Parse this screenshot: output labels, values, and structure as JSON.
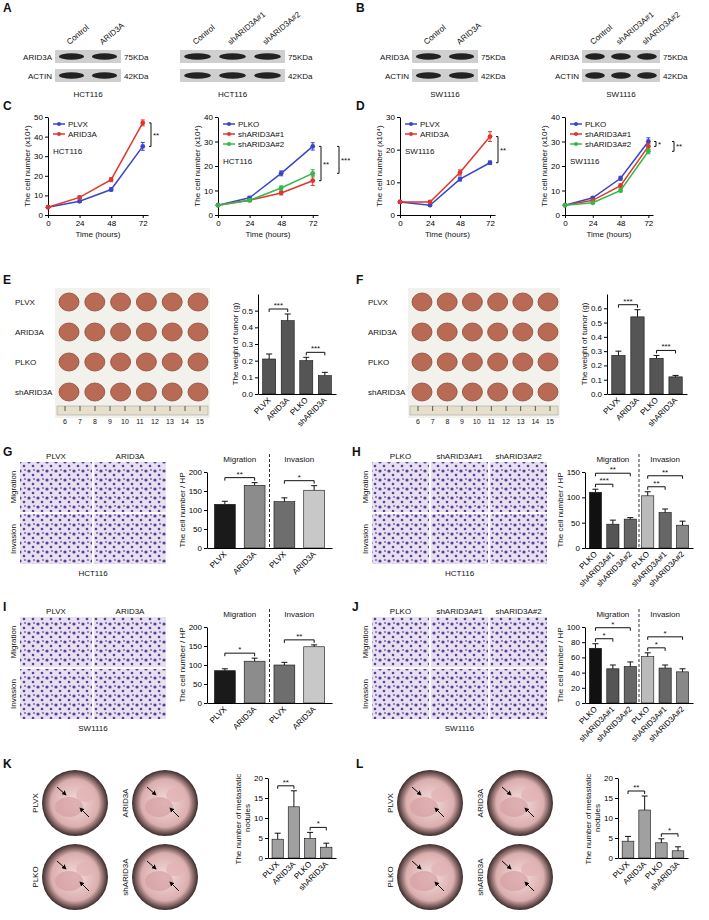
{
  "chart_data": [
    {
      "type": "line",
      "x_label": "Time (hours)",
      "y_label": "The cell number (x10⁴)",
      "cell_line": "HCT116",
      "x": [
        0,
        24,
        48,
        72
      ],
      "xlim": [
        0,
        76
      ],
      "xticks": [
        0,
        24,
        48,
        72
      ],
      "ylim": [
        0,
        50
      ],
      "yticks": [
        0,
        10,
        20,
        30,
        40,
        50
      ],
      "legend": "upper left",
      "marker": "circle",
      "series": [
        {
          "name": "PLVX",
          "color": "#3a46c8",
          "values": [
            4,
            7,
            13,
            35
          ],
          "errors": [
            0.4,
            0.6,
            0.8,
            2
          ]
        },
        {
          "name": "ARID3A",
          "color": "#e0362c",
          "values": [
            4,
            9,
            18,
            47
          ],
          "errors": [
            0.4,
            0.6,
            1,
            1.5
          ]
        }
      ],
      "annotations": [
        "**"
      ]
    },
    {
      "type": "line",
      "x_label": "Time (hours)",
      "y_label": "The cell number (x10⁴)",
      "cell_line": "HCT116",
      "x": [
        0,
        24,
        48,
        72
      ],
      "xlim": [
        0,
        76
      ],
      "xticks": [
        0,
        24,
        48,
        72
      ],
      "ylim": [
        0,
        40
      ],
      "yticks": [
        0,
        10,
        20,
        30,
        40
      ],
      "legend": "upper left",
      "marker": "circle",
      "series": [
        {
          "name": "PLKO",
          "color": "#3a46c8",
          "values": [
            4,
            7,
            17,
            28
          ],
          "errors": [
            0.4,
            0.6,
            1,
            1.5
          ]
        },
        {
          "name": "shARID3A#1",
          "color": "#e0362c",
          "values": [
            4,
            6,
            9,
            14
          ],
          "errors": [
            0.3,
            0.5,
            0.8,
            2
          ]
        },
        {
          "name": "shARID3A#2",
          "color": "#33b84a",
          "values": [
            4,
            6,
            11,
            17
          ],
          "errors": [
            0.3,
            0.5,
            0.9,
            1.5
          ]
        }
      ],
      "annotations": [
        "**",
        "***"
      ]
    },
    {
      "type": "line",
      "x_label": "Time (hours)",
      "y_label": "The cell number (x10⁴)",
      "cell_line": "SW1116",
      "x": [
        0,
        24,
        48,
        72
      ],
      "xlim": [
        0,
        76
      ],
      "xticks": [
        0,
        24,
        48,
        72
      ],
      "ylim": [
        0,
        30
      ],
      "yticks": [
        0,
        10,
        20,
        30
      ],
      "legend": "upper left",
      "marker": "circle",
      "series": [
        {
          "name": "PLVX",
          "color": "#3a46c8",
          "values": [
            4,
            3,
            11,
            16
          ],
          "errors": [
            0.3,
            0.3,
            0.6,
            0.5
          ]
        },
        {
          "name": "ARID3A",
          "color": "#e0362c",
          "values": [
            4,
            4,
            13,
            24
          ],
          "errors": [
            0.3,
            0.4,
            0.8,
            1.5
          ]
        }
      ],
      "annotations": [
        "**"
      ]
    },
    {
      "type": "line",
      "x_label": "Time (hours)",
      "y_label": "The cell number (x10⁴)",
      "cell_line": "SW1116",
      "x": [
        0,
        24,
        48,
        72
      ],
      "xlim": [
        0,
        76
      ],
      "xticks": [
        0,
        24,
        48,
        72
      ],
      "ylim": [
        0,
        40
      ],
      "yticks": [
        0,
        10,
        20,
        30,
        40
      ],
      "legend": "upper left",
      "marker": "circle",
      "series": [
        {
          "name": "PLKO",
          "color": "#3a46c8",
          "values": [
            4,
            7,
            15,
            30
          ],
          "errors": [
            0.3,
            0.5,
            0.8,
            1.5
          ]
        },
        {
          "name": "shARID3A#1",
          "color": "#e0362c",
          "values": [
            4,
            6,
            12,
            28
          ],
          "errors": [
            0.3,
            0.4,
            0.7,
            1.2
          ]
        },
        {
          "name": "shARID3A#2",
          "color": "#33b84a",
          "values": [
            4,
            5,
            10,
            26
          ],
          "errors": [
            0.3,
            0.4,
            0.6,
            1
          ]
        }
      ],
      "annotations": [
        "*",
        "**"
      ]
    },
    {
      "type": "bar",
      "y_label": "The weight of tumor (g)",
      "categories": [
        "PLVX",
        "ARID3A",
        "PLKO",
        "shARID3A"
      ],
      "values": [
        0.21,
        0.44,
        0.2,
        0.11
      ],
      "errors": [
        0.03,
        0.04,
        0.02,
        0.02
      ],
      "color": "#555555",
      "ylim": [
        0,
        0.6
      ],
      "yticks": [
        {
          "value": 0,
          "label": "0.0"
        },
        0.1,
        0.2,
        0.3,
        0.4,
        0.5
      ],
      "annotations": [
        "***",
        "***"
      ]
    },
    {
      "type": "bar",
      "y_label": "The weight of tumor (g)",
      "categories": [
        "PLVX",
        "ARID3A",
        "PLKO",
        "shARID3A"
      ],
      "values": [
        0.27,
        0.54,
        0.25,
        0.12
      ],
      "errors": [
        0.03,
        0.05,
        0.02,
        0.01
      ],
      "color": "#555555",
      "ylim": [
        0,
        0.7
      ],
      "yticks": [
        {
          "value": 0,
          "label": "0.0"
        },
        0.1,
        0.2,
        0.3,
        0.4,
        0.5,
        0.6
      ],
      "annotations": [
        "***",
        "***"
      ]
    },
    {
      "type": "bar",
      "y_label": "The cell number / HP",
      "groups": [
        "Migration",
        "Invasion"
      ],
      "categories": [
        "PLVX",
        "ARID3A",
        "PLVX",
        "ARID3A"
      ],
      "values": [
        115,
        165,
        122,
        152
      ],
      "errors": [
        8,
        7,
        10,
        12
      ],
      "colors": [
        "#1a1a1a",
        "#8c8c8c",
        "#6e6e6e",
        "#c8c8c8"
      ],
      "ylim": [
        0,
        200
      ],
      "yticks": [
        0,
        50,
        100,
        150,
        200
      ],
      "annotations": [
        "**",
        "*"
      ]
    },
    {
      "type": "bar",
      "y_label": "The cell number / HP",
      "groups": [
        "Migration",
        "Invasion"
      ],
      "categories": [
        "PLKO",
        "shARID3A#1",
        "shARID3A#2",
        "PLKO",
        "shARID3A#1",
        "shARID3A#2"
      ],
      "values": [
        110,
        47,
        57,
        103,
        70,
        45
      ],
      "errors": [
        6,
        8,
        3,
        8,
        7,
        8
      ],
      "colors": [
        "#111111",
        "#555555",
        "#666666",
        "#bbbbbb",
        "#666666",
        "#888888"
      ],
      "ylim": [
        0,
        150
      ],
      "yticks": [
        0,
        50,
        100,
        150
      ],
      "annotations": [
        "***",
        "**",
        "**",
        "**"
      ]
    },
    {
      "type": "bar",
      "y_label": "The cell number / HP",
      "groups": [
        "Migration",
        "Invasion"
      ],
      "categories": [
        "PLVX",
        "ARID3A",
        "PLVX",
        "ARID3A"
      ],
      "values": [
        85,
        110,
        100,
        148
      ],
      "errors": [
        5,
        8,
        7,
        5
      ],
      "colors": [
        "#1a1a1a",
        "#8c8c8c",
        "#6e6e6e",
        "#c8c8c8"
      ],
      "ylim": [
        0,
        200
      ],
      "yticks": [
        0,
        50,
        100,
        150,
        200
      ],
      "annotations": [
        "*",
        "**"
      ]
    },
    {
      "type": "bar",
      "y_label": "The cell number / HP",
      "groups": [
        "Migration",
        "Invasion"
      ],
      "categories": [
        "PLKO",
        "shARID3A#1",
        "shARID3A#2",
        "PLKO",
        "shARID3A#1",
        "shARID3A#2"
      ],
      "values": [
        72,
        45,
        48,
        61,
        46,
        41
      ],
      "errors": [
        6,
        5,
        6,
        5,
        4,
        4
      ],
      "colors": [
        "#111111",
        "#555555",
        "#666666",
        "#bbbbbb",
        "#666666",
        "#888888"
      ],
      "ylim": [
        0,
        100
      ],
      "yticks": [
        0,
        20,
        40,
        60,
        80,
        100
      ],
      "annotations": [
        "*",
        "*",
        "*",
        "*"
      ]
    },
    {
      "type": "bar",
      "y_label": "The number of metastatic nodules",
      "categories": [
        "PLVX",
        "ARID3A",
        "PLKO",
        "shARID3A"
      ],
      "values": [
        4.7,
        12.8,
        4.9,
        2.7
      ],
      "errors": [
        1.5,
        4,
        1.5,
        1
      ],
      "color": "#a0a0a0",
      "ylim": [
        0,
        20
      ],
      "yticks": [
        0,
        5,
        10,
        15,
        20
      ],
      "annotations": [
        "**",
        "*"
      ]
    },
    {
      "type": "bar",
      "y_label": "The number of metastatic nodules",
      "categories": [
        "PLVX",
        "ARID3A",
        "PLKO",
        "shARID3A"
      ],
      "values": [
        4.2,
        12,
        3.8,
        1.8
      ],
      "errors": [
        1.2,
        3.5,
        1,
        1
      ],
      "color": "#a0a0a0",
      "ylim": [
        0,
        20
      ],
      "yticks": [
        0,
        5,
        10,
        15,
        20
      ],
      "annotations": [
        "**",
        "*"
      ]
    }
  ],
  "panel_letters": [
    "A",
    "B",
    "C",
    "D",
    "E",
    "F",
    "G",
    "H",
    "I",
    "J",
    "K",
    "L"
  ],
  "blots": [
    {
      "columns": [
        "Control",
        "ARID3A"
      ],
      "rows": [
        "ARID3A",
        "ACTIN"
      ],
      "sizes": [
        "75KDa",
        "42KDa"
      ],
      "cell_line": "HCT116"
    },
    {
      "columns": [
        "Control",
        "shARID3A#1",
        "shARID3A#2"
      ],
      "sizes": [
        "75KDa",
        "42KDa"
      ],
      "cell_line": "HCT116"
    },
    {
      "columns": [
        "Control",
        "ARID3A"
      ],
      "rows": [
        "ARID3A",
        "ACTIN"
      ],
      "sizes": [
        "75KDa",
        "42KDa"
      ],
      "cell_line": "SW1116"
    },
    {
      "columns": [
        "Control",
        "shARID3A#1",
        "shARID3A#2"
      ],
      "rows": [
        "ARID3A",
        "ACTIN"
      ],
      "sizes": [
        "75KDa",
        "42KDa"
      ],
      "cell_line": "SW1116"
    }
  ],
  "tumor_images": [
    {
      "rows": [
        "PLVX",
        "ARID3A",
        "PLKO",
        "shARID3A"
      ],
      "ruler": [
        6,
        7,
        8,
        9,
        10,
        11,
        12,
        13,
        14,
        15
      ]
    },
    {
      "rows": [
        "PLVX",
        "ARID3A",
        "PLKO",
        "shARID3A"
      ],
      "ruler": [
        6,
        7,
        8,
        9,
        10,
        11,
        12,
        13,
        14,
        15
      ]
    }
  ],
  "transwell_images": [
    {
      "columns": [
        "PLVX",
        "ARID3A"
      ],
      "rows": [
        "Migration",
        "Invasion"
      ],
      "cell_line": "HCT116"
    },
    {
      "columns": [
        "PLKO",
        "shARID3A#1",
        "shARID3A#2"
      ],
      "rows": [
        "Migration",
        "Invasion"
      ],
      "cell_line": "HCT116"
    },
    {
      "columns": [
        "PLVX",
        "ARID3A"
      ],
      "rows": [
        "Migration",
        "Invasion"
      ],
      "cell_line": "SW1116"
    },
    {
      "columns": [
        "PLKO",
        "shARID3A#1",
        "shARID3A#2"
      ],
      "rows": [
        "Migration",
        "Invasion"
      ],
      "cell_line": "SW1116"
    }
  ],
  "lung_images": [
    {
      "labels": [
        "PLVX",
        "ARID3A",
        "PLKO",
        "shARID3A"
      ]
    },
    {
      "labels": [
        "PLVX",
        "ARID3A",
        "PLKO",
        "shARID3A"
      ]
    }
  ]
}
